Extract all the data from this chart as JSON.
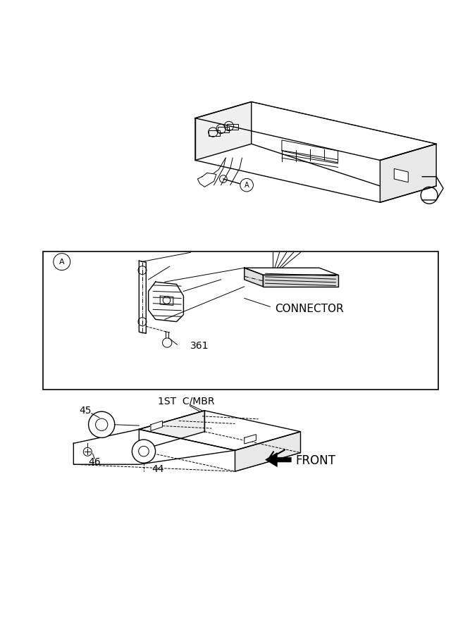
{
  "bg_color": "#ffffff",
  "line_color": "#000000",
  "fig_width": 6.67,
  "fig_height": 9.0,
  "dpi": 100,
  "label_A_circle_r": 0.018,
  "connector_text": "CONNECTOR",
  "label_361": "361",
  "label_44": "44",
  "label_45": "45",
  "label_46": "46",
  "label_1st": "1ST  C/MBR",
  "label_front": "FRONT",
  "font_size_connector": 11,
  "font_size_label": 9,
  "font_size_front": 12
}
